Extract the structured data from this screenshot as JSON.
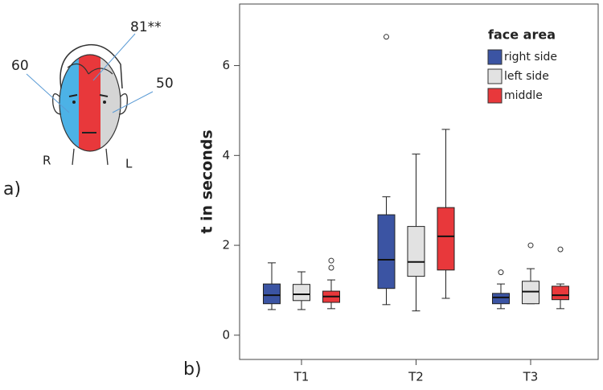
{
  "face_panel": {
    "label": "a)",
    "annotations": [
      "60",
      "81**",
      "50"
    ],
    "sides": [
      "R",
      "L"
    ]
  },
  "chart_data": {
    "type": "box",
    "panel_label": "b)",
    "ylabel": "t in seconds",
    "categories": [
      "T1",
      "T2",
      "T3"
    ],
    "ylim": [
      -0.54,
      7.37
    ],
    "yticks": [
      0,
      2,
      4,
      6
    ],
    "legend_title": "face area",
    "legend_position": "upper right",
    "series": [
      {
        "name": "right side",
        "color": "#3b54a3",
        "min": [
          0.57,
          0.68,
          0.59
        ],
        "q1": [
          0.7,
          1.04,
          0.7
        ],
        "median": [
          0.89,
          1.68,
          0.84
        ],
        "q3": [
          1.14,
          2.68,
          0.93
        ],
        "max": [
          1.61,
          3.08,
          1.14
        ],
        "outliers": [
          [],
          [
            6.64
          ],
          [
            1.4
          ]
        ]
      },
      {
        "name": "left side",
        "color": "#e2e2e2",
        "min": [
          0.57,
          0.54,
          0.7
        ],
        "q1": [
          0.77,
          1.31,
          0.7
        ],
        "median": [
          0.91,
          1.63,
          0.97
        ],
        "q3": [
          1.13,
          2.42,
          1.2
        ],
        "max": [
          1.41,
          4.03,
          1.48
        ],
        "outliers": [
          [],
          [],
          [
            2.0
          ]
        ]
      },
      {
        "name": "middle",
        "color": "#e8383b",
        "min": [
          0.59,
          0.82,
          0.59
        ],
        "q1": [
          0.73,
          1.45,
          0.79
        ],
        "median": [
          0.86,
          2.2,
          0.89
        ],
        "q3": [
          0.98,
          2.84,
          1.09
        ],
        "max": [
          1.23,
          4.58,
          1.14
        ],
        "outliers": [
          [
            1.66,
            1.5
          ],
          [],
          [
            1.91
          ]
        ]
      }
    ]
  }
}
